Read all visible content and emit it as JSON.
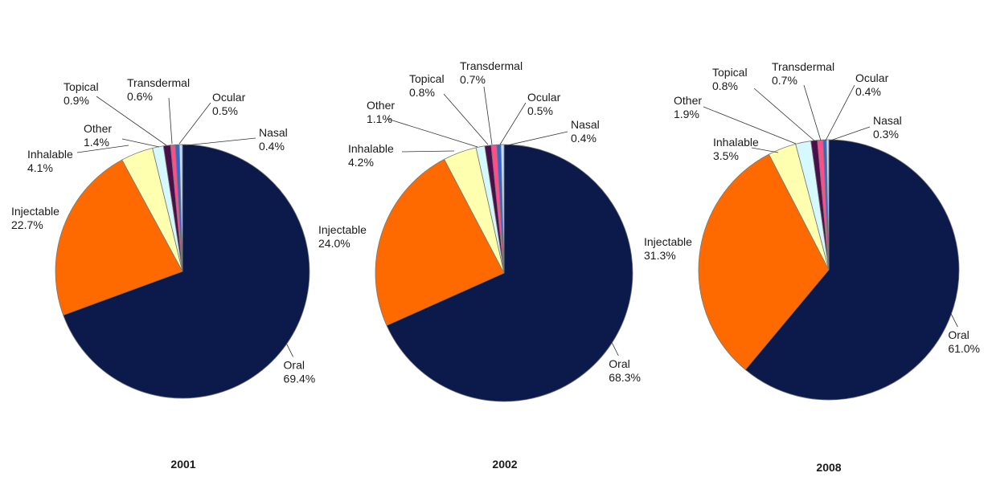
{
  "colors": {
    "Oral": "#0b1a4b",
    "Injectable": "#ff6a00",
    "Inhalable": "#ffffb0",
    "Other": "#d6f8ff",
    "Topical": "#4a0f4a",
    "Transdermal": "#ff4d8a",
    "Ocular": "#2a6bd6",
    "Nasal": "#c9dcff",
    "outline": "#777777"
  },
  "chart_data": [
    {
      "type": "pie",
      "title": "2001",
      "slices": [
        {
          "label": "Oral",
          "value_text": "69.4%",
          "value": 69.4
        },
        {
          "label": "Injectable",
          "value_text": "22.7%",
          "value": 22.7
        },
        {
          "label": "Inhalable",
          "value_text": "4.1%",
          "value": 4.1
        },
        {
          "label": "Other",
          "value_text": "1.4%",
          "value": 1.4
        },
        {
          "label": "Topical",
          "value_text": "0.9%",
          "value": 0.9
        },
        {
          "label": "Transdermal",
          "value_text": "0.6%",
          "value": 0.6
        },
        {
          "label": "Ocular",
          "value_text": "0.5%",
          "value": 0.5
        },
        {
          "label": "Nasal",
          "value_text": "0.4%",
          "value": 0.4
        }
      ]
    },
    {
      "type": "pie",
      "title": "2002",
      "slices": [
        {
          "label": "Oral",
          "value_text": "68.3%",
          "value": 68.3
        },
        {
          "label": "Injectable",
          "value_text": "24.0%",
          "value": 24.0
        },
        {
          "label": "Inhalable",
          "value_text": "4.2%",
          "value": 4.2
        },
        {
          "label": "Other",
          "value_text": "1.1%",
          "value": 1.1
        },
        {
          "label": "Topical",
          "value_text": "0.8%",
          "value": 0.8
        },
        {
          "label": "Transdermal",
          "value_text": "0.7%",
          "value": 0.7
        },
        {
          "label": "Ocular",
          "value_text": "0.5%",
          "value": 0.5
        },
        {
          "label": "Nasal",
          "value_text": "0.4%",
          "value": 0.4
        }
      ]
    },
    {
      "type": "pie",
      "title": "2008",
      "slices": [
        {
          "label": "Oral",
          "value_text": "61.0%",
          "value": 61.0
        },
        {
          "label": "Injectable",
          "value_text": "31.3%",
          "value": 31.3
        },
        {
          "label": "Inhalable",
          "value_text": "3.5%",
          "value": 3.5
        },
        {
          "label": "Other",
          "value_text": "1.9%",
          "value": 1.9
        },
        {
          "label": "Topical",
          "value_text": "0.8%",
          "value": 0.8
        },
        {
          "label": "Transdermal",
          "value_text": "0.7%",
          "value": 0.7
        },
        {
          "label": "Ocular",
          "value_text": "0.4%",
          "value": 0.4
        },
        {
          "label": "Nasal",
          "value_text": "0.3%",
          "value": 0.3
        }
      ]
    }
  ]
}
